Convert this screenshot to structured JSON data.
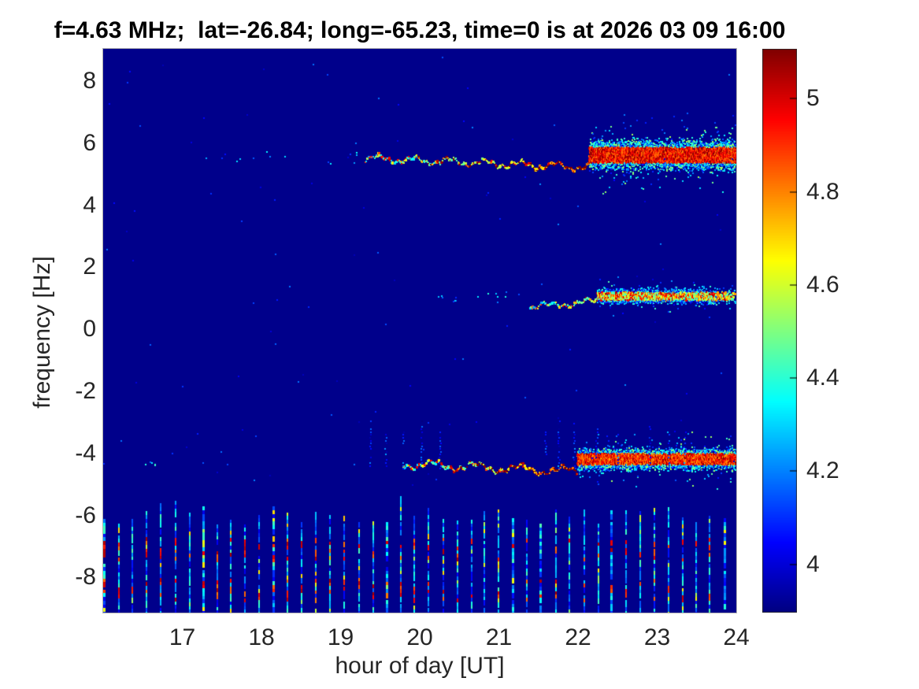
{
  "figure": {
    "background": "#ffffff",
    "text_color": "#262626",
    "title_color": "#000000"
  },
  "chart_data": {
    "type": "heatmap",
    "title": "f=4.63 MHz;  lat=-26.84; long=-65.23, time=0 is at 2026 03 09 16:00",
    "xlabel": "hour of day [UT]",
    "ylabel": "frequency [Hz]",
    "x_range": [
      16,
      24
    ],
    "y_range": [
      -9.13,
      9.04
    ],
    "x_tick_values": [
      17,
      18,
      19,
      20,
      21,
      22,
      23,
      24
    ],
    "x_ticks": [
      "17",
      "18",
      "19",
      "20",
      "21",
      "22",
      "23",
      "24"
    ],
    "y_tick_values": [
      8,
      6,
      4,
      2,
      0,
      -2,
      -4,
      -6,
      -8
    ],
    "y_ticks": [
      "8",
      "6",
      "4",
      "2",
      "0",
      "-2",
      "-4",
      "-6",
      "-8"
    ],
    "grid": false,
    "colormap": "jet",
    "background_value": 3.91,
    "colorbar": {
      "position": "right",
      "vmin": 3.896,
      "vmax": 5.107,
      "tick_values": [
        4,
        4.2,
        4.4,
        4.6,
        4.8,
        5
      ],
      "tick_labels": [
        "4",
        "4.2",
        "4.4",
        "4.6",
        "4.8",
        "5"
      ]
    },
    "features": [
      {
        "kind": "doppler_band",
        "name": "upper-sideband-trace",
        "f_center": 5.5,
        "sparse": {
          "t": [
            16.5,
            19.3
          ],
          "rate": 5,
          "f_jitter": 0.2,
          "val": [
            4.05,
            4.45
          ]
        },
        "trace": {
          "t": [
            19.3,
            22.15
          ],
          "step": 0.006,
          "drift": -0.3,
          "f_off": 0,
          "wave": [
            0.1,
            0.45
          ],
          "ripple": [
            0.05,
            0.12
          ],
          "heat": 0.5,
          "val_mix": [
            [
              4.3,
              0.5
            ],
            [
              4.6,
              0.2
            ],
            [
              4.9,
              0.3
            ]
          ]
        },
        "dense": {
          "t": [
            22.15,
            24.0
          ],
          "step": 0.005,
          "per_col": 15,
          "halfwidth": 0.42,
          "f_offset": 0.1,
          "core_val": [
            4.8,
            5.11
          ],
          "fringe_val": [
            4.05,
            4.55
          ]
        }
      },
      {
        "kind": "doppler_band",
        "name": "mid-band-trace",
        "f_center": 1.0,
        "sparse": {
          "t": [
            20.2,
            21.4
          ],
          "rate": 12,
          "f_jitter": 0.15,
          "val": [
            4.05,
            4.4
          ]
        },
        "trace": {
          "t": [
            21.4,
            22.25
          ],
          "step": 0.008,
          "drift": 0.2,
          "f_off": -0.3,
          "wave": [
            0.08,
            0.5
          ],
          "ripple": [
            0.05,
            0.14
          ],
          "heat": 0.3,
          "val_mix": [
            [
              4.25,
              0.6
            ],
            [
              4.55,
              0.25
            ],
            [
              4.85,
              0.15
            ]
          ]
        },
        "dense": {
          "t": [
            22.25,
            24.0
          ],
          "step": 0.006,
          "per_col": 8,
          "halfwidth": 0.22,
          "f_offset": 0.05,
          "core_val": [
            4.35,
            5.08
          ],
          "fringe_val": [
            4.0,
            4.45
          ],
          "fade_tail": 23.5
        }
      },
      {
        "kind": "doppler_band",
        "name": "lower-sideband-trace",
        "f_center": -4.35,
        "sparse": {
          "t": [
            16.5,
            16.75
          ],
          "rate": 20,
          "f_jitter": 0.08,
          "val": [
            4.1,
            4.45
          ]
        },
        "trace": {
          "t": [
            19.8,
            22.0
          ],
          "step": 0.006,
          "drift": -0.25,
          "f_off": 0,
          "wave": [
            0.12,
            0.55
          ],
          "ripple": [
            0.06,
            0.13
          ],
          "heat": 0.55,
          "val_mix": [
            [
              4.3,
              0.45
            ],
            [
              4.6,
              0.25
            ],
            [
              4.9,
              0.3
            ]
          ]
        },
        "dense": {
          "t": [
            22.0,
            24.0
          ],
          "step": 0.005,
          "per_col": 12,
          "halfwidth": 0.3,
          "f_offset": 0.15,
          "core_val": [
            4.75,
            5.1
          ],
          "fringe_val": [
            4.05,
            4.55
          ]
        }
      },
      {
        "kind": "spike_fence",
        "name": "faint-vertical-spikes",
        "t": [
          19.2,
          23.5
        ],
        "interval": 0.22,
        "prob": 0.65,
        "f_base": -4.5,
        "f_top": [
          -3.5,
          -2.8
        ],
        "val": [
          3.98,
          4.28
        ]
      },
      {
        "kind": "pulse_train",
        "name": "periodic-interference-stripes",
        "t": [
          16.01,
          24.0
        ],
        "interval": 0.178,
        "f_top": [
          -6.3,
          -5.7
        ],
        "f_bottom": -9.13,
        "seg_h": 0.12,
        "base_val": [
          4.02,
          4.45
        ],
        "hot_rows": [
          -7.05,
          -8.35
        ],
        "hot_halfwidth": 0.35,
        "hot_prob": 0.5,
        "hot_val": [
          4.8,
          5.06
        ],
        "weak_prob": 0.22,
        "tall_prob": 0.12
      },
      {
        "kind": "scatter_specks",
        "name": "background-specks",
        "count": 130,
        "t": [
          16.0,
          24.0
        ],
        "f": [
          -5.4,
          8.9
        ],
        "val": [
          3.96,
          4.22
        ]
      }
    ]
  }
}
